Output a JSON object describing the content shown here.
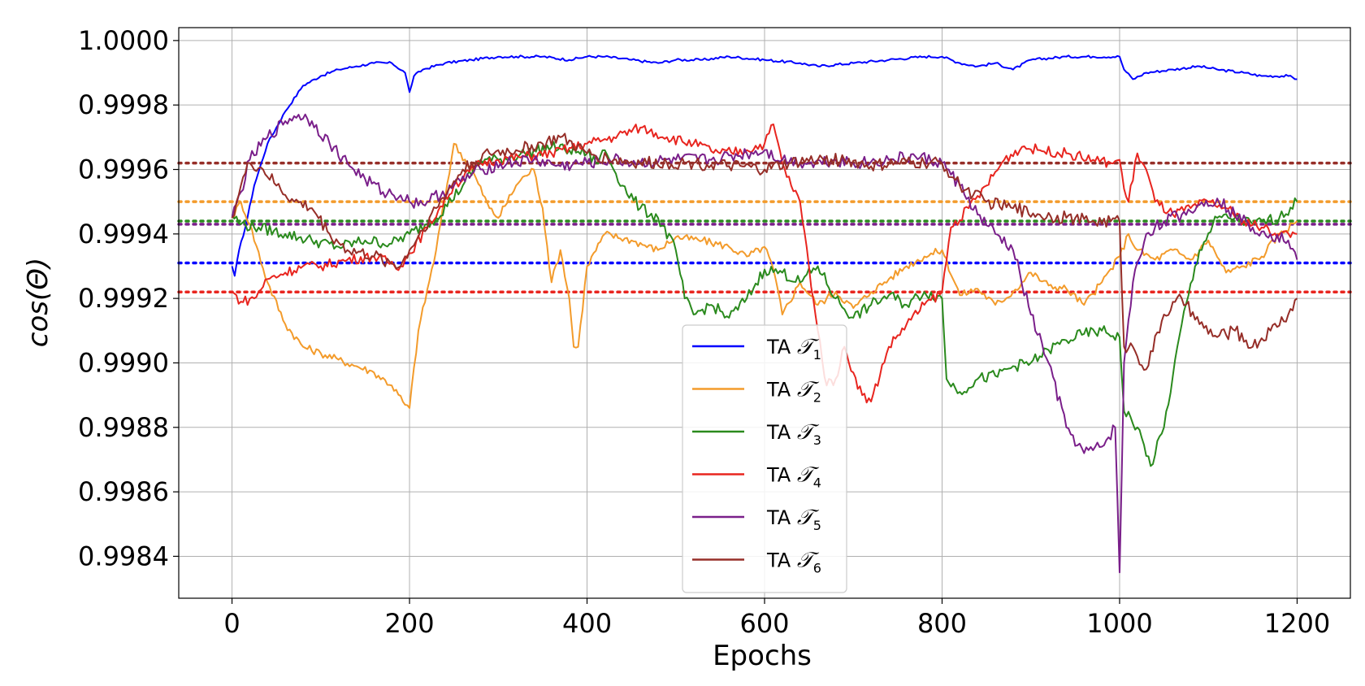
{
  "chart_data": {
    "type": "line",
    "xlabel": "Epochs",
    "ylabel": "cos(Θ)",
    "xlim": [
      -60,
      1260
    ],
    "ylim": [
      0.99827,
      1.00004
    ],
    "xticks": [
      0,
      200,
      400,
      600,
      800,
      1000,
      1200
    ],
    "xtick_labels": [
      "0",
      "200",
      "400",
      "600",
      "800",
      "1000",
      "1200"
    ],
    "yticks": [
      0.9984,
      0.9986,
      0.9988,
      0.999,
      0.9992,
      0.9994,
      0.9996,
      0.9998,
      1.0
    ],
    "ytick_labels": [
      "0.9984",
      "0.9986",
      "0.9988",
      "0.9990",
      "0.9992",
      "0.9994",
      "0.9996",
      "0.9998",
      "1.0000"
    ],
    "grid": true,
    "legend_position": "bottom-center",
    "series": [
      {
        "name_prefix": "TA",
        "name_symbol": "𝒯",
        "name_sub": "1",
        "color": "#0000ff",
        "x": [
          0,
          3,
          8,
          15,
          25,
          40,
          60,
          80,
          100,
          120,
          140,
          160,
          180,
          195,
          200,
          205,
          215,
          240,
          270,
          300,
          320,
          350,
          380,
          400,
          420,
          450,
          480,
          500,
          530,
          560,
          600,
          640,
          660,
          700,
          740,
          780,
          800,
          820,
          840,
          860,
          880,
          900,
          940,
          970,
          1000,
          1005,
          1015,
          1030,
          1060,
          1090,
          1110,
          1140,
          1160,
          1190,
          1200
        ],
        "y": [
          0.9993,
          0.99927,
          0.99935,
          0.99942,
          0.99955,
          0.99968,
          0.99978,
          0.99986,
          0.99989,
          0.99991,
          0.99992,
          0.99993,
          0.99993,
          0.9999,
          0.99984,
          0.99989,
          0.99991,
          0.99993,
          0.99994,
          0.99995,
          0.99995,
          0.99995,
          0.99994,
          0.99995,
          0.99995,
          0.99994,
          0.99993,
          0.99994,
          0.99994,
          0.99995,
          0.99994,
          0.99993,
          0.99992,
          0.99993,
          0.99994,
          0.99995,
          0.99995,
          0.99993,
          0.99992,
          0.99993,
          0.99991,
          0.99994,
          0.99995,
          0.99995,
          0.99995,
          0.99991,
          0.99988,
          0.9999,
          0.99991,
          0.99992,
          0.99991,
          0.9999,
          0.99989,
          0.99989,
          0.99988
        ],
        "baseline": 0.99931
      },
      {
        "name_prefix": "TA",
        "name_symbol": "𝒯",
        "name_sub": "2",
        "color": "#f39b2b",
        "x": [
          0,
          10,
          20,
          40,
          60,
          80,
          100,
          120,
          140,
          160,
          180,
          195,
          200,
          210,
          230,
          250,
          270,
          290,
          300,
          320,
          330,
          340,
          350,
          360,
          370,
          380,
          385,
          390,
          400,
          420,
          450,
          480,
          500,
          530,
          560,
          580,
          600,
          610,
          620,
          640,
          660,
          680,
          700,
          720,
          740,
          760,
          780,
          800,
          820,
          840,
          860,
          880,
          900,
          920,
          940,
          960,
          980,
          1000,
          1010,
          1020,
          1040,
          1060,
          1080,
          1100,
          1120,
          1140,
          1160,
          1180,
          1200
        ],
        "y": [
          0.99945,
          0.9995,
          0.99943,
          0.99925,
          0.99912,
          0.99905,
          0.99903,
          0.99901,
          0.99899,
          0.99897,
          0.99893,
          0.99887,
          0.99886,
          0.9991,
          0.99935,
          0.99968,
          0.9996,
          0.99948,
          0.99945,
          0.99955,
          0.99958,
          0.9996,
          0.99948,
          0.99925,
          0.99935,
          0.9992,
          0.99905,
          0.99905,
          0.9993,
          0.9994,
          0.99938,
          0.99935,
          0.99939,
          0.99938,
          0.99936,
          0.99933,
          0.99936,
          0.99929,
          0.99915,
          0.99925,
          0.99918,
          0.99922,
          0.99917,
          0.99922,
          0.99926,
          0.9993,
          0.99933,
          0.99935,
          0.99921,
          0.99923,
          0.99918,
          0.99922,
          0.99928,
          0.99924,
          0.99923,
          0.99918,
          0.99925,
          0.99933,
          0.9994,
          0.99935,
          0.99932,
          0.99935,
          0.99932,
          0.99938,
          0.99928,
          0.9993,
          0.99933,
          0.9994,
          0.99944
        ],
        "baseline": 0.9995
      },
      {
        "name_prefix": "TA",
        "name_symbol": "𝒯",
        "name_sub": "3",
        "color": "#2a8a1d",
        "x": [
          0,
          10,
          30,
          60,
          90,
          120,
          150,
          180,
          200,
          230,
          260,
          280,
          300,
          330,
          360,
          380,
          400,
          410,
          420,
          440,
          460,
          480,
          500,
          510,
          520,
          540,
          560,
          580,
          600,
          620,
          640,
          660,
          680,
          700,
          720,
          740,
          760,
          780,
          800,
          805,
          820,
          840,
          860,
          880,
          900,
          920,
          940,
          960,
          980,
          1000,
          1005,
          1020,
          1035,
          1050,
          1070,
          1090,
          1110,
          1130,
          1150,
          1180,
          1200
        ],
        "y": [
          0.99946,
          0.99943,
          0.99942,
          0.9994,
          0.99938,
          0.99936,
          0.99938,
          0.99937,
          0.9994,
          0.99945,
          0.99955,
          0.99963,
          0.99963,
          0.99965,
          0.99967,
          0.99966,
          0.99965,
          0.99962,
          0.99966,
          0.99955,
          0.99948,
          0.99945,
          0.99935,
          0.9992,
          0.99915,
          0.99918,
          0.99914,
          0.9992,
          0.99929,
          0.99928,
          0.99925,
          0.9993,
          0.9992,
          0.99914,
          0.99918,
          0.99921,
          0.99918,
          0.99922,
          0.9992,
          0.99895,
          0.99891,
          0.99895,
          0.99896,
          0.99899,
          0.999,
          0.99904,
          0.99907,
          0.99909,
          0.9991,
          0.99908,
          0.99885,
          0.9988,
          0.99868,
          0.9988,
          0.99912,
          0.99935,
          0.99945,
          0.99945,
          0.99943,
          0.99945,
          0.9995
        ],
        "baseline": 0.99944
      },
      {
        "name_prefix": "TA",
        "name_symbol": "𝒯",
        "name_sub": "4",
        "color": "#e8251f",
        "x": [
          0,
          10,
          25,
          40,
          60,
          80,
          100,
          130,
          160,
          190,
          200,
          220,
          250,
          280,
          300,
          330,
          360,
          400,
          430,
          460,
          490,
          520,
          550,
          580,
          600,
          610,
          620,
          630,
          640,
          650,
          660,
          670,
          680,
          690,
          700,
          710,
          720,
          740,
          760,
          780,
          800,
          810,
          830,
          850,
          870,
          890,
          910,
          940,
          970,
          990,
          1000,
          1005,
          1010,
          1020,
          1030,
          1040,
          1060,
          1080,
          1100,
          1120,
          1140,
          1160,
          1180,
          1200
        ],
        "y": [
          0.99922,
          0.99919,
          0.9992,
          0.99926,
          0.99928,
          0.9993,
          0.9993,
          0.99932,
          0.99933,
          0.9993,
          0.99934,
          0.99942,
          0.99955,
          0.99962,
          0.99963,
          0.99964,
          0.99965,
          0.99968,
          0.9997,
          0.99973,
          0.9997,
          0.99968,
          0.99965,
          0.99966,
          0.99968,
          0.99974,
          0.99962,
          0.99955,
          0.9995,
          0.9993,
          0.9991,
          0.99893,
          0.99895,
          0.99905,
          0.99897,
          0.9989,
          0.99888,
          0.99905,
          0.99912,
          0.99918,
          0.99922,
          0.99942,
          0.99948,
          0.99955,
          0.99963,
          0.99967,
          0.99966,
          0.99965,
          0.99963,
          0.99962,
          0.99963,
          0.99954,
          0.9995,
          0.99965,
          0.9996,
          0.9995,
          0.99946,
          0.99948,
          0.9995,
          0.99948,
          0.99944,
          0.99942,
          0.9994,
          0.9994
        ],
        "baseline": 0.99922
      },
      {
        "name_prefix": "TA",
        "name_symbol": "𝒯",
        "name_sub": "5",
        "color": "#7a1f8a",
        "x": [
          0,
          10,
          20,
          40,
          60,
          75,
          90,
          110,
          130,
          150,
          170,
          190,
          200,
          220,
          250,
          280,
          310,
          340,
          370,
          400,
          430,
          460,
          500,
          540,
          580,
          600,
          620,
          650,
          680,
          710,
          740,
          770,
          800,
          820,
          840,
          860,
          880,
          900,
          920,
          940,
          960,
          980,
          995,
          1000,
          1005,
          1015,
          1030,
          1050,
          1070,
          1090,
          1110,
          1130,
          1150,
          1170,
          1190,
          1200
        ],
        "y": [
          0.99945,
          0.99953,
          0.99963,
          0.9997,
          0.99975,
          0.99977,
          0.99975,
          0.99968,
          0.99962,
          0.99957,
          0.99953,
          0.99952,
          0.9995,
          0.9995,
          0.99955,
          0.9996,
          0.99962,
          0.99963,
          0.99961,
          0.99962,
          0.99963,
          0.99962,
          0.99963,
          0.99963,
          0.99965,
          0.99966,
          0.99963,
          0.99962,
          0.99963,
          0.99962,
          0.99963,
          0.99964,
          0.99962,
          0.99955,
          0.99946,
          0.9994,
          0.99935,
          0.99915,
          0.999,
          0.9988,
          0.99872,
          0.99874,
          0.9988,
          0.99835,
          0.999,
          0.99925,
          0.9994,
          0.99944,
          0.99946,
          0.99949,
          0.99951,
          0.99946,
          0.99942,
          0.9994,
          0.99938,
          0.99932
        ],
        "baseline": 0.99943
      },
      {
        "name_prefix": "TA",
        "name_symbol": "𝒯",
        "name_sub": "6",
        "color": "#962e28",
        "x": [
          0,
          10,
          20,
          35,
          50,
          70,
          90,
          110,
          130,
          160,
          190,
          200,
          230,
          260,
          290,
          320,
          350,
          370,
          400,
          430,
          460,
          490,
          520,
          560,
          600,
          630,
          660,
          690,
          720,
          750,
          780,
          800,
          820,
          850,
          880,
          910,
          940,
          970,
          1000,
          1005,
          1015,
          1030,
          1050,
          1070,
          1090,
          1110,
          1130,
          1150,
          1170,
          1190,
          1200
        ],
        "y": [
          0.99945,
          0.99955,
          0.99962,
          0.9996,
          0.99955,
          0.9995,
          0.99948,
          0.9994,
          0.99935,
          0.99933,
          0.9993,
          0.99935,
          0.99948,
          0.9996,
          0.99965,
          0.99966,
          0.99968,
          0.9997,
          0.99965,
          0.99963,
          0.99962,
          0.99962,
          0.99962,
          0.99961,
          0.9996,
          0.99962,
          0.99963,
          0.99963,
          0.99961,
          0.99962,
          0.99962,
          0.99962,
          0.99955,
          0.9995,
          0.99948,
          0.99946,
          0.99945,
          0.99944,
          0.99944,
          0.99905,
          0.99905,
          0.99898,
          0.99915,
          0.9992,
          0.99912,
          0.99908,
          0.9991,
          0.99905,
          0.9991,
          0.99915,
          0.9992
        ],
        "baseline": 0.99962
      }
    ]
  }
}
